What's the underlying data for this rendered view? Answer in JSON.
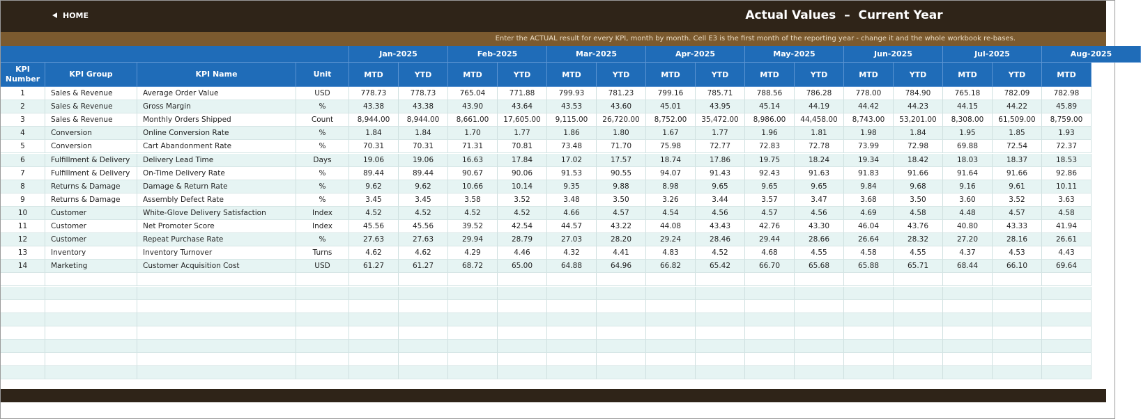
{
  "header": {
    "home": "HOME",
    "title": "Actual Values  –  Current Year",
    "note": "Enter the ACTUAL result for every KPI, month by month. Cell E3 is the first month of the reporting year - change it and the whole workbook re-bases."
  },
  "table": {
    "columns": [
      "KPI Number",
      "KPI Group",
      "KPI Name",
      "Unit"
    ],
    "months": [
      "Jan-2025",
      "Feb-2025",
      "Mar-2025",
      "Apr-2025",
      "May-2025",
      "Jun-2025",
      "Jul-2025",
      "Aug-2025"
    ],
    "subcolumns": [
      "MTD",
      "YTD",
      "MTD",
      "YTD",
      "MTD",
      "YTD",
      "MTD",
      "YTD",
      "MTD",
      "YTD",
      "MTD",
      "YTD",
      "MTD",
      "YTD",
      "MTD"
    ],
    "rows": [
      [
        "1",
        "Sales & Revenue",
        "Average Order Value",
        "USD",
        "778.73",
        "778.73",
        "765.04",
        "771.88",
        "799.93",
        "781.23",
        "799.16",
        "785.71",
        "788.56",
        "786.28",
        "778.00",
        "784.90",
        "765.18",
        "782.09",
        "782.98"
      ],
      [
        "2",
        "Sales & Revenue",
        "Gross Margin",
        "%",
        "43.38",
        "43.38",
        "43.90",
        "43.64",
        "43.53",
        "43.60",
        "45.01",
        "43.95",
        "45.14",
        "44.19",
        "44.42",
        "44.23",
        "44.15",
        "44.22",
        "45.89"
      ],
      [
        "3",
        "Sales & Revenue",
        "Monthly Orders Shipped",
        "Count",
        "8,944.00",
        "8,944.00",
        "8,661.00",
        "17,605.00",
        "9,115.00",
        "26,720.00",
        "8,752.00",
        "35,472.00",
        "8,986.00",
        "44,458.00",
        "8,743.00",
        "53,201.00",
        "8,308.00",
        "61,509.00",
        "8,759.00"
      ],
      [
        "4",
        "Conversion",
        "Online Conversion Rate",
        "%",
        "1.84",
        "1.84",
        "1.70",
        "1.77",
        "1.86",
        "1.80",
        "1.67",
        "1.77",
        "1.96",
        "1.81",
        "1.98",
        "1.84",
        "1.95",
        "1.85",
        "1.93"
      ],
      [
        "5",
        "Conversion",
        "Cart Abandonment Rate",
        "%",
        "70.31",
        "70.31",
        "71.31",
        "70.81",
        "73.48",
        "71.70",
        "75.98",
        "72.77",
        "72.83",
        "72.78",
        "73.99",
        "72.98",
        "69.88",
        "72.54",
        "72.37"
      ],
      [
        "6",
        "Fulfillment & Delivery",
        "Delivery Lead Time",
        "Days",
        "19.06",
        "19.06",
        "16.63",
        "17.84",
        "17.02",
        "17.57",
        "18.74",
        "17.86",
        "19.75",
        "18.24",
        "19.34",
        "18.42",
        "18.03",
        "18.37",
        "18.53"
      ],
      [
        "7",
        "Fulfillment & Delivery",
        "On-Time Delivery Rate",
        "%",
        "89.44",
        "89.44",
        "90.67",
        "90.06",
        "91.53",
        "90.55",
        "94.07",
        "91.43",
        "92.43",
        "91.63",
        "91.83",
        "91.66",
        "91.64",
        "91.66",
        "92.86"
      ],
      [
        "8",
        "Returns & Damage",
        "Damage & Return Rate",
        "%",
        "9.62",
        "9.62",
        "10.66",
        "10.14",
        "9.35",
        "9.88",
        "8.98",
        "9.65",
        "9.65",
        "9.65",
        "9.84",
        "9.68",
        "9.16",
        "9.61",
        "10.11"
      ],
      [
        "9",
        "Returns & Damage",
        "Assembly Defect Rate",
        "%",
        "3.45",
        "3.45",
        "3.58",
        "3.52",
        "3.48",
        "3.50",
        "3.26",
        "3.44",
        "3.57",
        "3.47",
        "3.68",
        "3.50",
        "3.60",
        "3.52",
        "3.63"
      ],
      [
        "10",
        "Customer",
        "White-Glove Delivery Satisfaction",
        "Index",
        "4.52",
        "4.52",
        "4.52",
        "4.52",
        "4.66",
        "4.57",
        "4.54",
        "4.56",
        "4.57",
        "4.56",
        "4.69",
        "4.58",
        "4.48",
        "4.57",
        "4.58"
      ],
      [
        "11",
        "Customer",
        "Net Promoter Score",
        "Index",
        "45.56",
        "45.56",
        "39.52",
        "42.54",
        "44.57",
        "43.22",
        "44.08",
        "43.43",
        "42.76",
        "43.30",
        "46.04",
        "43.76",
        "40.80",
        "43.33",
        "41.94"
      ],
      [
        "12",
        "Customer",
        "Repeat Purchase Rate",
        "%",
        "27.63",
        "27.63",
        "29.94",
        "28.79",
        "27.03",
        "28.20",
        "29.24",
        "28.46",
        "29.44",
        "28.66",
        "26.64",
        "28.32",
        "27.20",
        "28.16",
        "26.61"
      ],
      [
        "13",
        "Inventory",
        "Inventory Turnover",
        "Turns",
        "4.62",
        "4.62",
        "4.29",
        "4.46",
        "4.32",
        "4.41",
        "4.83",
        "4.52",
        "4.68",
        "4.55",
        "4.58",
        "4.55",
        "4.37",
        "4.53",
        "4.43"
      ],
      [
        "14",
        "Marketing",
        "Customer Acquisition Cost",
        "USD",
        "61.27",
        "61.27",
        "68.72",
        "65.00",
        "64.88",
        "64.96",
        "66.82",
        "65.42",
        "66.70",
        "65.68",
        "65.88",
        "65.71",
        "68.44",
        "66.10",
        "69.64"
      ]
    ]
  }
}
